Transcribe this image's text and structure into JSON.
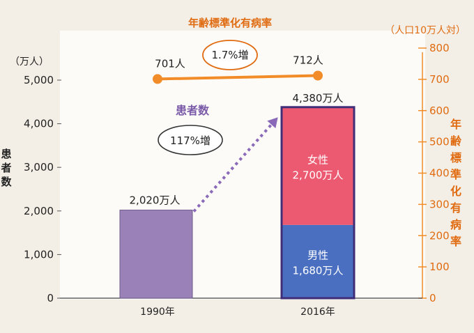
{
  "chart_data": {
    "type": "bar",
    "categories": [
      "1990年",
      "2016年"
    ],
    "title_right": "年齢標準化有病率",
    "left_axis": {
      "unit_label": "（万人）",
      "label": "患者数",
      "ticks": [
        "0",
        "1,000",
        "2,000",
        "3,000",
        "4,000",
        "5,000"
      ],
      "ylim": [
        0,
        5500
      ]
    },
    "right_axis": {
      "unit_label": "（人口10万人対）",
      "label": "年齢標準化有病率",
      "ticks": [
        "0",
        "100",
        "200",
        "300",
        "400",
        "500",
        "600",
        "700",
        "800"
      ],
      "ylim": [
        0,
        800
      ]
    },
    "bars": {
      "series_label": "患者数",
      "values": [
        2020,
        4380
      ],
      "value_labels": [
        "2,020万人",
        "4,380万人"
      ],
      "stack_2016": [
        {
          "name": "男性",
          "value": 1680,
          "value_label": "1,680万人",
          "color": "#4a6fc0"
        },
        {
          "name": "女性",
          "value": 2700,
          "value_label": "2,700万人",
          "color": "#ec5a72"
        }
      ],
      "color_1990": "#9a82b8",
      "growth_label": "117%増"
    },
    "rate_line": {
      "values": [
        701,
        712
      ],
      "value_labels": [
        "701人",
        "712人"
      ],
      "growth_label": "1.7%増",
      "color": "#f28c28"
    },
    "colors": {
      "accent_orange": "#e06b10",
      "purple_text": "#7a5aa8",
      "stack_border": "#3f2d78",
      "arrow": "#8a6ab8"
    }
  }
}
